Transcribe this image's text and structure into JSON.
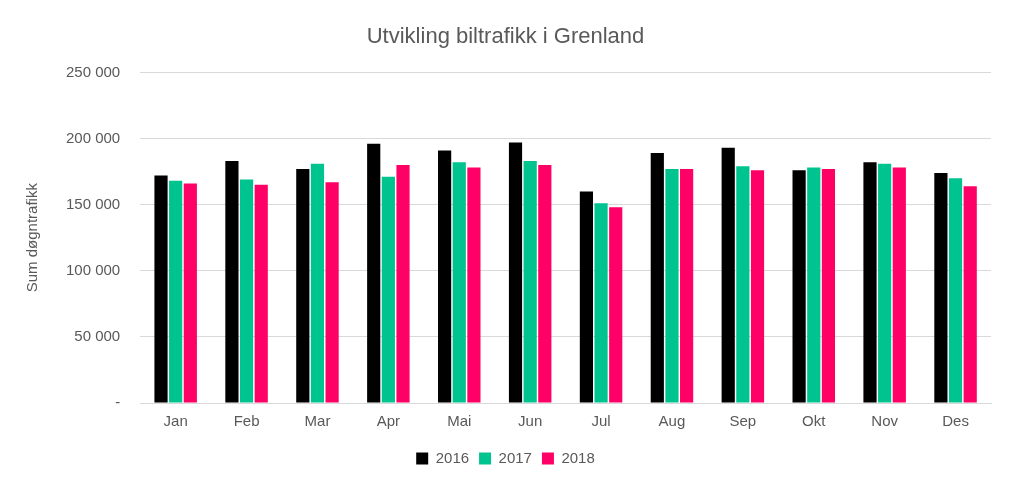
{
  "chart_data": {
    "type": "bar",
    "title": "Utvikling biltrafikk i Grenland",
    "ylabel": "Sum døgntrafikk",
    "categories": [
      "Jan",
      "Feb",
      "Mar",
      "Apr",
      "Mai",
      "Jun",
      "Jul",
      "Aug",
      "Sep",
      "Okt",
      "Nov",
      "Des"
    ],
    "series": [
      {
        "name": "2016",
        "color": "#000000",
        "values": [
          172000,
          183000,
          177000,
          196000,
          191000,
          197000,
          160000,
          189000,
          193000,
          176000,
          182000,
          174000
        ]
      },
      {
        "name": "2017",
        "color": "#00c48f",
        "values": [
          168000,
          169000,
          181000,
          171000,
          182000,
          183000,
          151000,
          177000,
          179000,
          178000,
          181000,
          170000
        ]
      },
      {
        "name": "2018",
        "color": "#ff0066",
        "values": [
          166000,
          165000,
          167000,
          180000,
          178000,
          180000,
          148000,
          177000,
          176000,
          177000,
          178000,
          164000
        ]
      }
    ],
    "ylim": [
      0,
      250000
    ],
    "yticks": [
      {
        "value": 0,
        "label": "-"
      },
      {
        "value": 50000,
        "label": "50 000"
      },
      {
        "value": 100000,
        "label": "100 000"
      },
      {
        "value": 150000,
        "label": "150 000"
      },
      {
        "value": 200000,
        "label": "200 000"
      },
      {
        "value": 250000,
        "label": "250 000"
      }
    ],
    "grid": "y",
    "legend": "bottom"
  }
}
